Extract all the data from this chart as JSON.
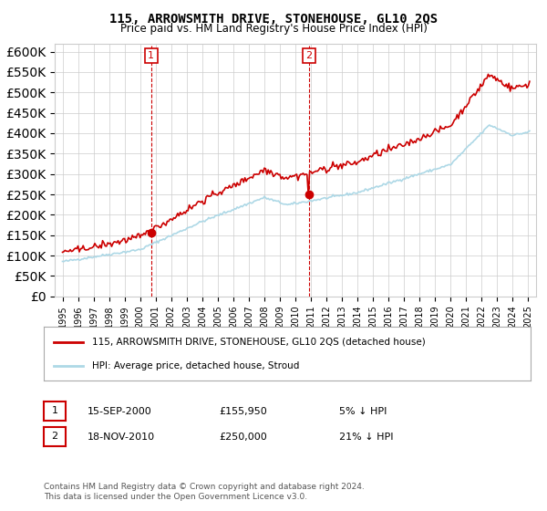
{
  "title": "115, ARROWSMITH DRIVE, STONEHOUSE, GL10 2QS",
  "subtitle": "Price paid vs. HM Land Registry's House Price Index (HPI)",
  "legend_line1": "115, ARROWSMITH DRIVE, STONEHOUSE, GL10 2QS (detached house)",
  "legend_line2": "HPI: Average price, detached house, Stroud",
  "annotation1_label": "1",
  "annotation1_date": "15-SEP-2000",
  "annotation1_price": 155950,
  "annotation1_hpi": "5% ↓ HPI",
  "annotation2_label": "2",
  "annotation2_date": "18-NOV-2010",
  "annotation2_price": 250000,
  "annotation2_hpi": "21% ↓ HPI",
  "footer": "Contains HM Land Registry data © Crown copyright and database right 2024.\nThis data is licensed under the Open Government Licence v3.0.",
  "hpi_color": "#add8e6",
  "price_color": "#cc0000",
  "annotation_color": "#cc0000",
  "background_color": "#ffffff",
  "grid_color": "#cccccc",
  "ylim": [
    0,
    620000
  ],
  "yticks": [
    0,
    50000,
    100000,
    150000,
    200000,
    250000,
    300000,
    350000,
    400000,
    450000,
    500000,
    550000,
    600000
  ]
}
